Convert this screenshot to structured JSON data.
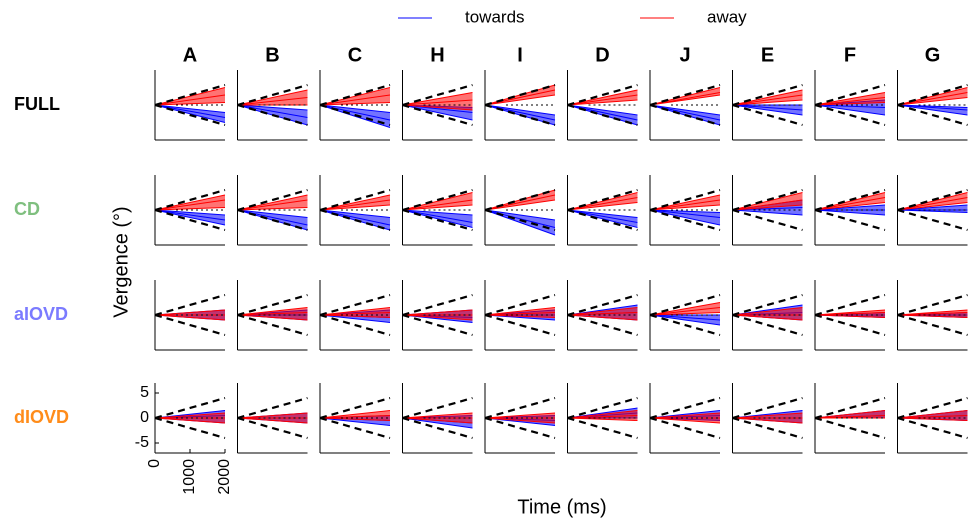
{
  "chart_data": {
    "type": "small-multiples-line",
    "x_label": "Time (ms)",
    "y_label": "Vergence (°)",
    "xlim": [
      0,
      2000
    ],
    "xticks": [
      0,
      1000,
      2000
    ],
    "ylim": [
      -7,
      7
    ],
    "yticks": [
      -5,
      0,
      5
    ],
    "reference_lines": [
      4,
      -4
    ],
    "columns": [
      "A",
      "B",
      "C",
      "H",
      "I",
      "D",
      "J",
      "E",
      "F",
      "G"
    ],
    "rows": [
      {
        "name": "FULL",
        "color": "#000000"
      },
      {
        "name": "CD",
        "color": "#7fbf7f"
      },
      {
        "name": "aIOVD",
        "color": "#7b7bff"
      },
      {
        "name": "dIOVD",
        "color": "#ff8c1a"
      }
    ],
    "series": [
      {
        "name": "towards",
        "color": "#0000ff"
      },
      {
        "name": "away",
        "color": "#ff0000"
      }
    ],
    "panels": [
      [
        {
          "towards": [
            -1.5,
            -2.5,
            -3.5
          ],
          "away": [
            0.5,
            2,
            3.5
          ]
        },
        {
          "towards": [
            -1,
            -2.5,
            -4
          ],
          "away": [
            0,
            1.5,
            3
          ]
        },
        {
          "towards": [
            -1.5,
            -3,
            -4.5
          ],
          "away": [
            0.5,
            2,
            3.5
          ]
        },
        {
          "towards": [
            -0.5,
            -1.5,
            -3
          ],
          "away": [
            -1,
            1,
            2.5
          ]
        },
        {
          "towards": [
            -2,
            -3,
            -4
          ],
          "away": [
            2,
            3,
            4
          ]
        },
        {
          "towards": [
            -2,
            -3,
            -4
          ],
          "away": [
            1,
            2,
            3
          ]
        },
        {
          "towards": [
            -2,
            -3,
            -4
          ],
          "away": [
            2,
            2.5,
            3.5
          ]
        },
        {
          "towards": [
            0,
            -1,
            -2
          ],
          "away": [
            1,
            2,
            3
          ]
        },
        {
          "towards": [
            1,
            -0.5,
            -2
          ],
          "away": [
            0.5,
            1.5,
            2.5
          ]
        },
        {
          "towards": [
            -0.5,
            -1,
            -2
          ],
          "away": [
            1.5,
            2.5,
            3.5
          ]
        }
      ],
      [
        {
          "towards": [
            -1,
            -2,
            -3
          ],
          "away": [
            0.5,
            2,
            3
          ]
        },
        {
          "towards": [
            -1.5,
            -3,
            -4
          ],
          "away": [
            0.5,
            2,
            3
          ]
        },
        {
          "towards": [
            -1.5,
            -3,
            -4
          ],
          "away": [
            1,
            2,
            3
          ]
        },
        {
          "towards": [
            -1,
            -2.5,
            -3.5
          ],
          "away": [
            1,
            2,
            3.5
          ]
        },
        {
          "towards": [
            -2,
            -3.5,
            -5
          ],
          "away": [
            2,
            3,
            4
          ]
        },
        {
          "towards": [
            -1.5,
            -2.5,
            -3.5
          ],
          "away": [
            1.5,
            2.5,
            3.5
          ]
        },
        {
          "towards": [
            -0.5,
            -1.5,
            -3
          ],
          "away": [
            1,
            2,
            3
          ]
        },
        {
          "towards": [
            2,
            0.5,
            -1
          ],
          "away": [
            1,
            2,
            3.5
          ]
        },
        {
          "towards": [
            1,
            0,
            -1
          ],
          "away": [
            1.5,
            2.5,
            3.5
          ]
        },
        {
          "towards": [
            -0.5,
            0,
            1
          ],
          "away": [
            1.5,
            2.5,
            3.5
          ]
        }
      ],
      [
        {
          "towards": [
            -1,
            0,
            1
          ],
          "away": [
            -1,
            0,
            1
          ]
        },
        {
          "towards": [
            -1,
            0,
            1
          ],
          "away": [
            -1,
            0.5,
            1.5
          ]
        },
        {
          "towards": [
            -1.5,
            -0.5,
            1
          ],
          "away": [
            -0.5,
            0.5,
            1.5
          ]
        },
        {
          "towards": [
            -1.5,
            -0.5,
            1
          ],
          "away": [
            -1,
            0,
            1
          ]
        },
        {
          "towards": [
            -1,
            0,
            1
          ],
          "away": [
            -0.5,
            0.5,
            1.5
          ]
        },
        {
          "towards": [
            -1,
            0.5,
            2
          ],
          "away": [
            -1,
            0.5,
            1.5
          ]
        },
        {
          "towards": [
            -2,
            -1,
            0
          ],
          "away": [
            0.5,
            1.5,
            2.5
          ]
        },
        {
          "towards": [
            -1,
            0.5,
            2
          ],
          "away": [
            -1,
            0,
            1.5
          ]
        },
        {
          "towards": [
            -0.5,
            0,
            0.5
          ],
          "away": [
            -0.5,
            0.5,
            1
          ]
        },
        {
          "towards": [
            -0.5,
            0,
            0.5
          ],
          "away": [
            -0.5,
            0.5,
            1
          ]
        }
      ],
      [
        {
          "towards": [
            -1,
            0.5,
            1.5
          ],
          "away": [
            -1,
            0,
            1
          ]
        },
        {
          "towards": [
            -1,
            0,
            1
          ],
          "away": [
            -1,
            0,
            1
          ]
        },
        {
          "towards": [
            -1.5,
            -0.5,
            0.5
          ],
          "away": [
            -0.5,
            0.5,
            1.5
          ]
        },
        {
          "towards": [
            -2,
            -1,
            0.5
          ],
          "away": [
            -1,
            0,
            1
          ]
        },
        {
          "towards": [
            -1.5,
            -0.5,
            0.5
          ],
          "away": [
            -1,
            0,
            1
          ]
        },
        {
          "towards": [
            0,
            1,
            2
          ],
          "away": [
            -0.5,
            0.5,
            1.5
          ]
        },
        {
          "towards": [
            -0.5,
            0.5,
            1.5
          ],
          "away": [
            -1,
            0,
            1
          ]
        },
        {
          "towards": [
            -1,
            0,
            1.5
          ],
          "away": [
            -1,
            0,
            1
          ]
        },
        {
          "towards": [
            0,
            0.5,
            1.5
          ],
          "away": [
            0,
            0.5,
            1.5
          ]
        },
        {
          "towards": [
            -0.5,
            0.5,
            1.5
          ],
          "away": [
            -0.5,
            0.5,
            1.5
          ]
        }
      ]
    ]
  }
}
